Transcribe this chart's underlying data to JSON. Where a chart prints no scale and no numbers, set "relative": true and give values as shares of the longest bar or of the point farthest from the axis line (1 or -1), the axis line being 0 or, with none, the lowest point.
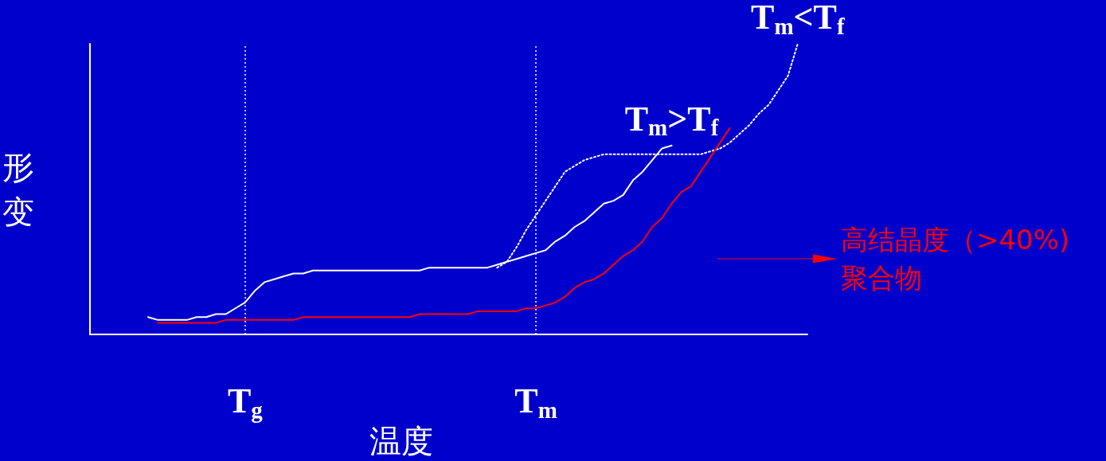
{
  "chart_data": {
    "type": "line",
    "relative": true,
    "xlabel": "温度",
    "ylabel": "形变",
    "categories": [
      null,
      null,
      null,
      null,
      null,
      null,
      null,
      null,
      null,
      null,
      null,
      null,
      null,
      null,
      null,
      null,
      "T$_{g}$",
      null,
      null,
      null,
      null,
      null,
      null,
      null,
      null,
      null,
      null,
      null,
      null,
      null,
      null,
      null,
      null,
      null,
      null,
      null,
      null,
      null,
      null,
      null,
      null,
      null,
      null,
      null,
      null,
      null,
      "T$_{m}$",
      null,
      null,
      null,
      null,
      null,
      null,
      null,
      null,
      null,
      null,
      null,
      null,
      null,
      null,
      null,
      null,
      null,
      null,
      null,
      null,
      null,
      null,
      null,
      null,
      null,
      null,
      null,
      null
    ],
    "ref_lines": [
      {
        "axis": "x",
        "value": "T$_{g}$",
        "label": null,
        "color": "#ffffff",
        "line_style": "dotted"
      },
      {
        "axis": "x",
        "value": "T$_{m}$",
        "label": null,
        "color": "#ffffff",
        "line_style": "dotted"
      }
    ],
    "marker": "none",
    "grid": false,
    "legend": "right",
    "series": [
      {
        "name": "T$_{m}$>T$_{f}$",
        "color": "#ffffff",
        "line_style": "solid",
        "values": [
          null,
          null,
          null,
          null,
          null,
          null,
          0.06,
          0.05,
          0.05,
          0.05,
          0.05,
          0.06,
          0.06,
          0.07,
          0.07,
          0.09,
          0.11,
          0.15,
          0.18,
          0.19,
          0.2,
          0.21,
          0.21,
          0.22,
          0.22,
          0.22,
          0.22,
          0.22,
          0.22,
          0.22,
          0.22,
          0.22,
          0.22,
          0.22,
          0.22,
          0.23,
          0.23,
          0.23,
          0.23,
          0.23,
          0.23,
          0.23,
          0.24,
          0.25,
          0.26,
          0.27,
          0.28,
          0.29,
          0.32,
          0.34,
          0.37,
          0.39,
          0.42,
          0.45,
          0.46,
          0.48,
          0.53,
          0.56,
          0.6,
          0.64,
          0.65,
          null,
          null,
          null,
          null,
          null,
          null,
          null,
          null,
          null,
          null,
          null,
          null,
          null,
          null
        ]
      },
      {
        "name": "T$_{m}$<T$_{f}$",
        "color": "#ffffff",
        "line_style": "dotted",
        "values": [
          null,
          null,
          null,
          null,
          null,
          null,
          null,
          null,
          null,
          null,
          null,
          null,
          null,
          null,
          null,
          null,
          null,
          null,
          null,
          null,
          null,
          null,
          null,
          null,
          null,
          null,
          null,
          null,
          null,
          null,
          null,
          null,
          null,
          null,
          null,
          null,
          null,
          null,
          null,
          null,
          null,
          null,
          0.23,
          0.25,
          0.3,
          0.36,
          0.41,
          0.46,
          0.51,
          0.56,
          0.58,
          0.6,
          0.61,
          0.62,
          0.62,
          0.62,
          0.62,
          0.62,
          0.62,
          0.62,
          0.62,
          0.62,
          0.62,
          0.62,
          0.63,
          0.64,
          0.66,
          0.69,
          0.72,
          0.76,
          0.79,
          0.84,
          0.89,
          1.0,
          null
        ]
      },
      {
        "name": "高结晶度（>40%) 聚合物",
        "color": "#ff0000",
        "line_style": "solid",
        "values": [
          null,
          null,
          null,
          null,
          null,
          null,
          null,
          0.04,
          0.04,
          0.04,
          0.04,
          0.04,
          0.04,
          0.04,
          0.05,
          0.05,
          0.05,
          0.05,
          0.05,
          0.05,
          0.05,
          0.05,
          0.06,
          0.06,
          0.06,
          0.06,
          0.06,
          0.06,
          0.06,
          0.06,
          0.06,
          0.06,
          0.06,
          0.06,
          0.07,
          0.07,
          0.07,
          0.07,
          0.07,
          0.07,
          0.08,
          0.08,
          0.08,
          0.08,
          0.08,
          0.09,
          0.09,
          0.1,
          0.11,
          0.13,
          0.16,
          0.18,
          0.19,
          0.21,
          0.24,
          0.27,
          0.29,
          0.32,
          0.37,
          0.4,
          0.45,
          0.49,
          0.51,
          0.56,
          0.61,
          0.66,
          0.71,
          null,
          null,
          null,
          null,
          null,
          null,
          null,
          null
        ]
      }
    ]
  }
}
